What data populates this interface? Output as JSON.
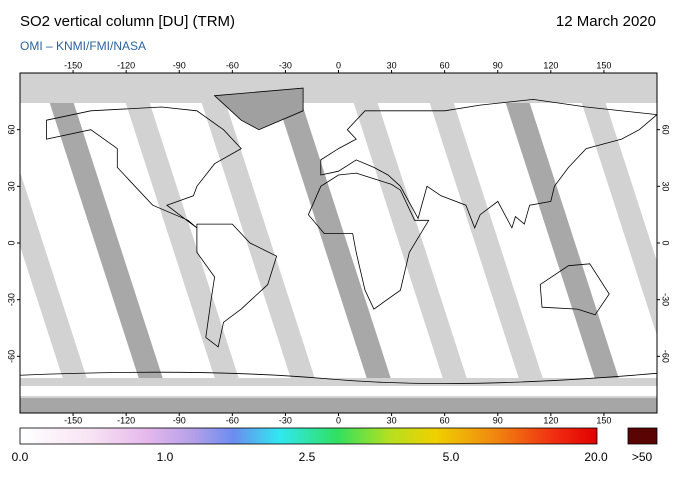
{
  "header": {
    "title": "SO2 vertical column [DU] (TRM)",
    "source": "OMI  –  KNMI/FMI/NASA",
    "date": "12 March 2020"
  },
  "map": {
    "lon_ticks": [
      -150,
      -120,
      -90,
      -60,
      -30,
      0,
      30,
      60,
      90,
      120,
      150
    ],
    "lat_ticks": [
      60,
      30,
      0,
      -30,
      -60
    ]
  },
  "colorbar": {
    "labels": [
      "0.0",
      "1.0",
      "2.5",
      "5.0",
      "20.0",
      ">50"
    ]
  }
}
